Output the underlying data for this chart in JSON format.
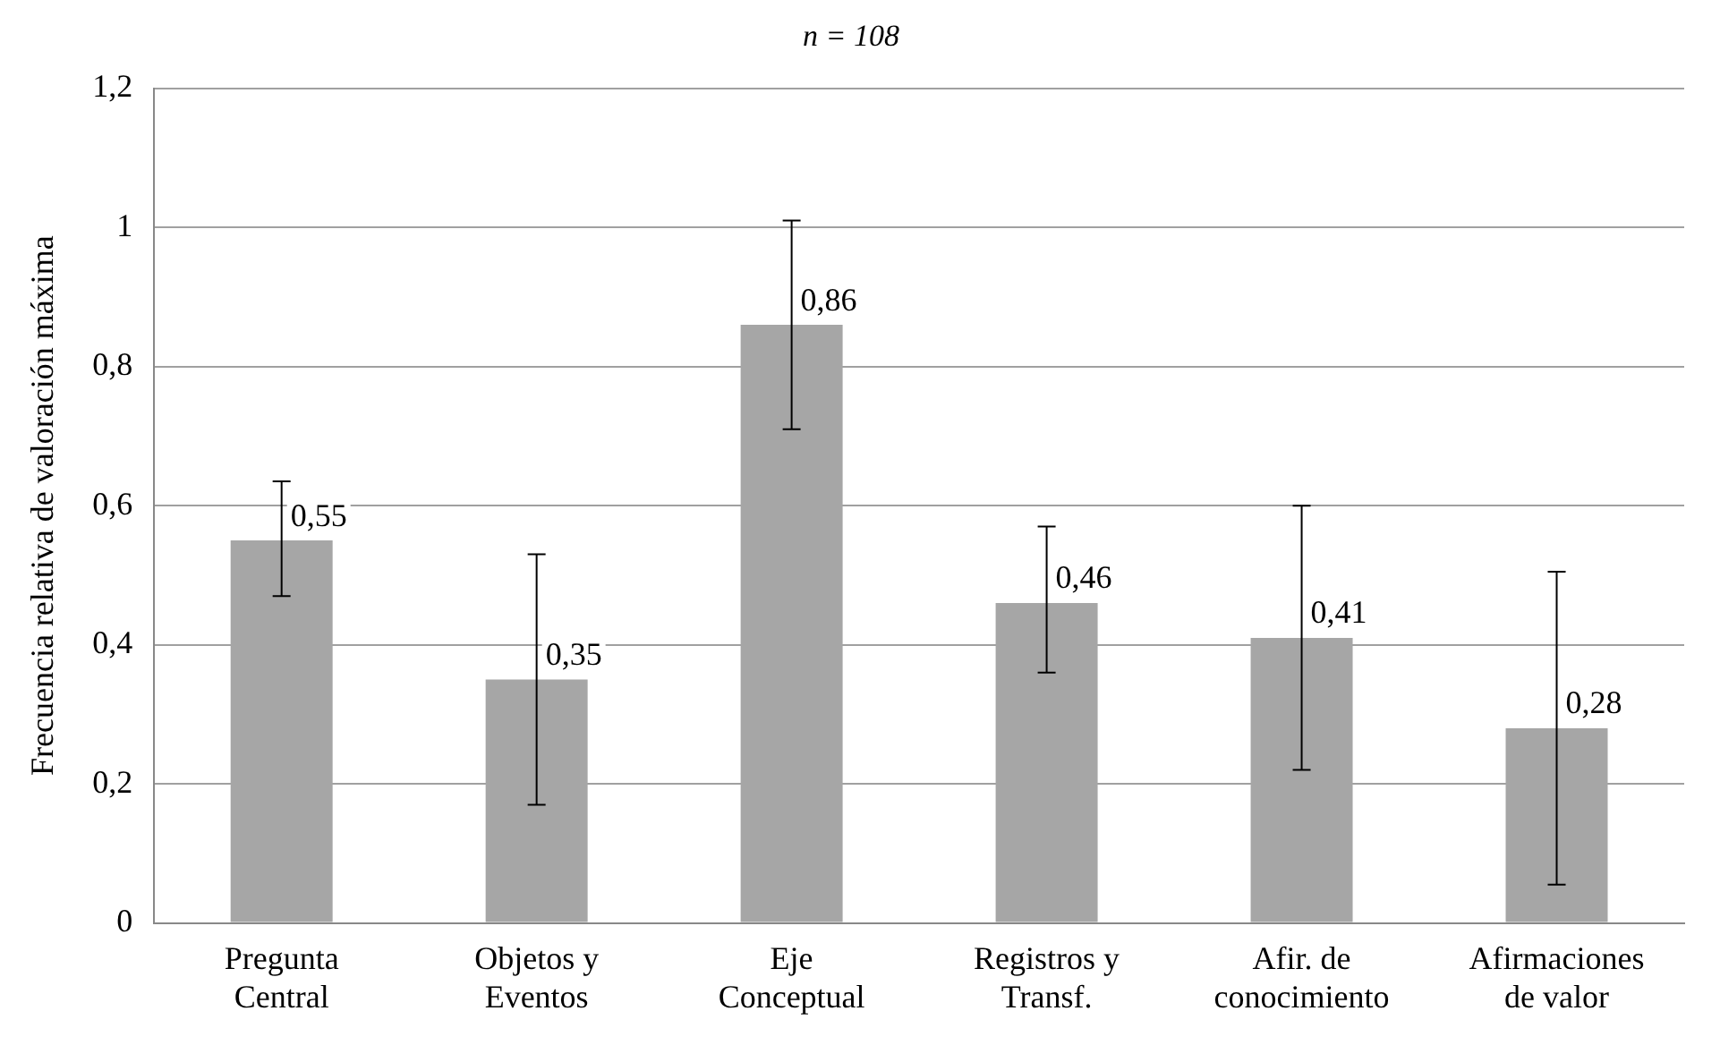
{
  "chart_data": {
    "type": "bar",
    "title": "n = 108",
    "ylabel": "Frecuencia relativa de valoración máxima",
    "categories": [
      "Pregunta Central",
      "Objetos y Eventos",
      "Eje Conceptual",
      "Registros y Transf.",
      "Afir. de conocimiento",
      "Afirmaciones de valor"
    ],
    "values": [
      0.55,
      0.35,
      0.86,
      0.46,
      0.41,
      0.28
    ],
    "errors": [
      [
        0.47,
        0.635
      ],
      [
        0.17,
        0.53
      ],
      [
        0.71,
        1.01
      ],
      [
        0.36,
        0.57
      ],
      [
        0.22,
        0.6
      ],
      [
        0.055,
        0.505
      ]
    ],
    "value_labels": [
      "0,55",
      "0,35",
      "0,86",
      "0,46",
      "0,41",
      "0,28"
    ],
    "color": "#a6a6a6",
    "ylim": [
      0,
      1.2
    ],
    "yticks": [
      0,
      {
        "value": 0.2,
        "label": "0,2"
      },
      {
        "value": 0.4,
        "label": "0,4"
      },
      {
        "value": 0.6,
        "label": "0,6"
      },
      {
        "value": 0.8,
        "label": "0,8"
      },
      1,
      {
        "value": 1.2,
        "label": "1,2"
      }
    ],
    "grid": "y",
    "legend": false
  }
}
